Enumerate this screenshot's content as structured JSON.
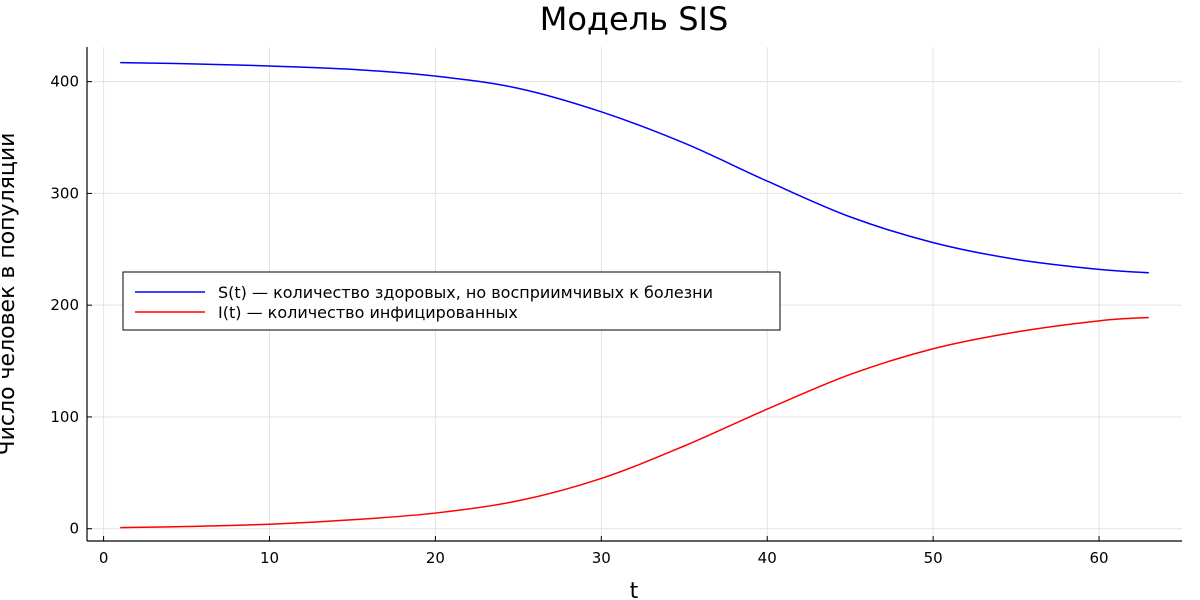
{
  "chart_data": {
    "type": "line",
    "title": "Модель SIS",
    "xlabel": "t",
    "ylabel": "Число человек в популяции",
    "xlim": [
      -1,
      65
    ],
    "ylim": [
      -11,
      431
    ],
    "xticks": [
      0,
      10,
      20,
      30,
      40,
      50,
      60
    ],
    "yticks": [
      0,
      100,
      200,
      300,
      400
    ],
    "grid": true,
    "legend_position": "center-left",
    "x": [
      1,
      5,
      10,
      15,
      20,
      25,
      30,
      35,
      40,
      45,
      50,
      55,
      60,
      63
    ],
    "series": [
      {
        "name": "S(t) — количество здоровых, но восприимчивых к болезни",
        "color": "#0000ff",
        "values": [
          417,
          416,
          414,
          411,
          405,
          394,
          373,
          345,
          311,
          279,
          256,
          241,
          232,
          229
        ]
      },
      {
        "name": "I(t) — количество инфицированных",
        "color": "#ff0000",
        "values": [
          1,
          2,
          4,
          8,
          14,
          25,
          45,
          74,
          107,
          138,
          161,
          176,
          186,
          189
        ]
      }
    ]
  }
}
